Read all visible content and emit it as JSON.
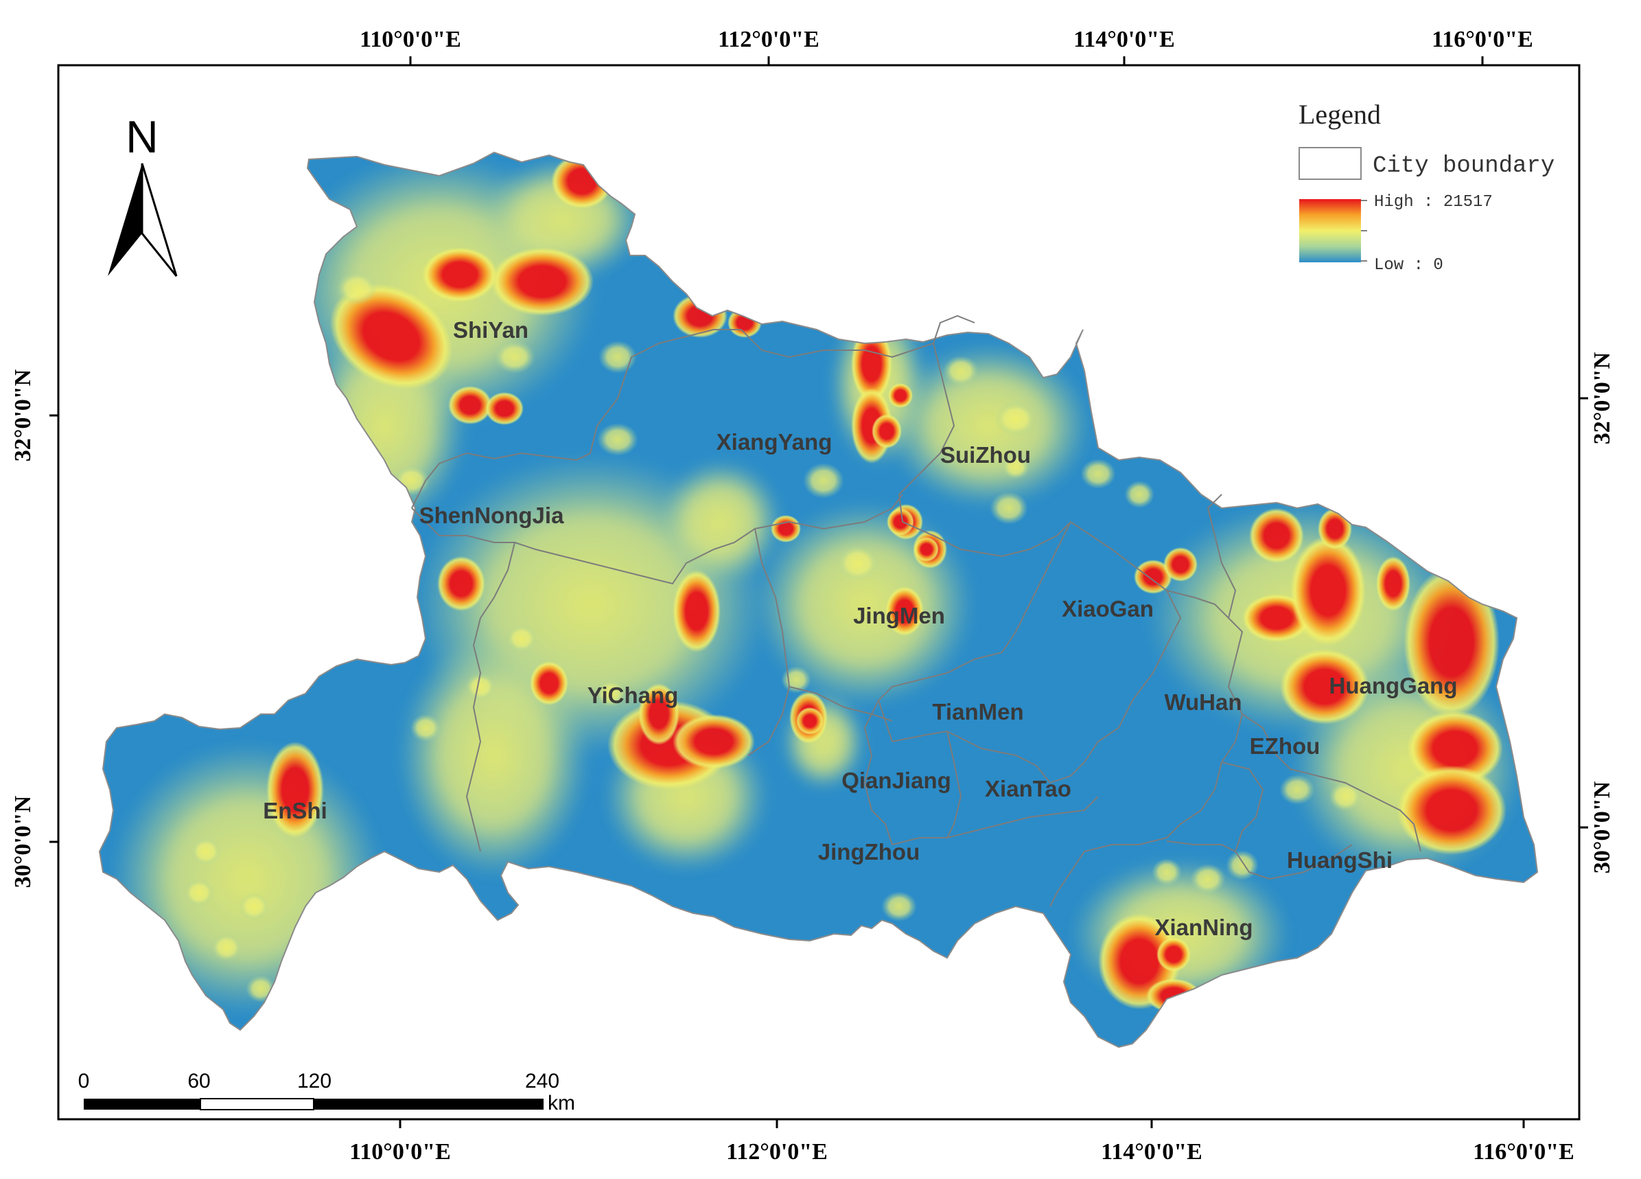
{
  "map": {
    "north_label": "N",
    "graticule_top": [
      "110°0'0\"E",
      "112°0'0\"E",
      "114°0'0\"E",
      "116°0'0\"E"
    ],
    "graticule_bottom": [
      "110°0'0\"E",
      "112°0'0\"E",
      "114°0'0\"E",
      "116°0'0\"E"
    ],
    "graticule_left": [
      "32°0'0\"N",
      "30°0'0\"N"
    ],
    "graticule_right": [
      "32°0'0\"N",
      "30°0'0\"N"
    ],
    "cities": [
      "ShiYan",
      "XiangYang",
      "SuiZhou",
      "ShenNongJia",
      "JingMen",
      "XiaoGan",
      "YiChang",
      "TianMen",
      "WuHan",
      "HuangGang",
      "EZhou",
      "EnShi",
      "QianJiang",
      "XianTao",
      "JingZhou",
      "HuangShi",
      "XianNing"
    ],
    "colors": {
      "low": "#2b8cc8",
      "mid": "#f2f06a",
      "high": "#e8161c",
      "boundary": "#8a8a8a"
    }
  },
  "legend": {
    "title": "Legend",
    "boundary_label": "City boundary",
    "high_label": "High : 21517",
    "low_label": "Low : 0"
  },
  "scale_bar": {
    "ticks": [
      "0",
      "60",
      "120",
      "240"
    ],
    "unit": "km"
  }
}
